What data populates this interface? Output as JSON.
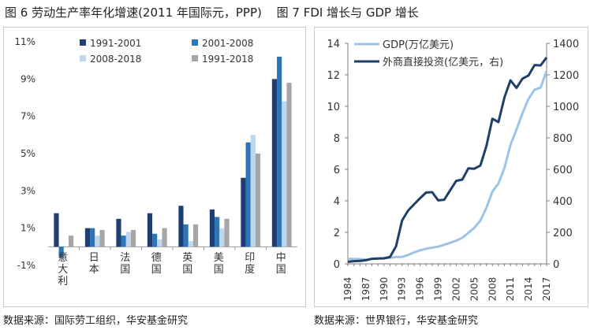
{
  "header": {
    "left_title": "图 6  劳动生产率年化增速(2011 年国际元，PPP)",
    "right_title": "图 7 FDI 增长与 GDP 增长"
  },
  "footer": {
    "left_source": "数据来源：国际劳工组织，华安基金研究",
    "right_source": "数据来源：世界银行，华安基金研究"
  },
  "chart_data": [
    {
      "type": "bar",
      "title": "劳动生产率年化增速(2011 年国际元，PPP)",
      "categories": [
        "意大利",
        "日本",
        "法国",
        "德国",
        "英国",
        "美国",
        "印度",
        "中国"
      ],
      "series": [
        {
          "name": "1991-2001",
          "color": "#1f3f73",
          "values": [
            1.8,
            1.0,
            1.5,
            1.8,
            2.2,
            2.0,
            3.7,
            9.0
          ]
        },
        {
          "name": "2001-2008",
          "color": "#2e75b6",
          "values": [
            -0.6,
            1.0,
            0.6,
            0.7,
            1.2,
            1.6,
            5.6,
            10.2
          ]
        },
        {
          "name": "2008-2018",
          "color": "#bdd7ee",
          "values": [
            0.0,
            0.6,
            0.8,
            0.4,
            0.3,
            1.0,
            6.0,
            7.8
          ]
        },
        {
          "name": "1991-2018",
          "color": "#a6a6a6",
          "values": [
            0.6,
            0.9,
            0.9,
            1.0,
            1.2,
            1.5,
            5.0,
            8.8
          ]
        }
      ],
      "ylim": [
        -1,
        11
      ],
      "yticks": [
        -1,
        1,
        3,
        5,
        7,
        9,
        11
      ],
      "ytick_labels": [
        "-1%",
        "1%",
        "3%",
        "5%",
        "7%",
        "9%",
        "11%"
      ],
      "legend_position": "top"
    },
    {
      "type": "line",
      "title": "FDI 增长与 GDP 增长",
      "x": [
        1984,
        1985,
        1986,
        1987,
        1988,
        1989,
        1990,
        1991,
        1992,
        1993,
        1994,
        1995,
        1996,
        1997,
        1998,
        1999,
        2000,
        2001,
        2002,
        2003,
        2004,
        2005,
        2006,
        2007,
        2008,
        2009,
        2010,
        2011,
        2012,
        2013,
        2014,
        2015,
        2016,
        2017
      ],
      "xtick_labels": [
        "1984",
        "1987",
        "1990",
        "1993",
        "1996",
        "1999",
        "2002",
        "2005",
        "2008",
        "2011",
        "2014",
        "2017"
      ],
      "y_left": {
        "label": "GDP(万亿美元)",
        "ylim": [
          0,
          14
        ],
        "ticks": [
          0,
          2,
          4,
          6,
          8,
          10,
          12,
          14
        ]
      },
      "y_right": {
        "label": "外商直接投资(亿美元，右)",
        "ylim": [
          0,
          1400
        ],
        "ticks": [
          0,
          200,
          400,
          600,
          800,
          1000,
          1200,
          1400
        ]
      },
      "series": [
        {
          "name": "GDP(万亿美元)",
          "axis": "left",
          "color": "#9dc3e6",
          "values": [
            0.31,
            0.31,
            0.3,
            0.27,
            0.31,
            0.35,
            0.36,
            0.38,
            0.43,
            0.44,
            0.56,
            0.73,
            0.86,
            0.96,
            1.03,
            1.09,
            1.21,
            1.34,
            1.47,
            1.66,
            1.96,
            2.29,
            2.75,
            3.55,
            4.59,
            5.1,
            6.09,
            7.55,
            8.53,
            9.57,
            10.48,
            11.06,
            11.19,
            12.24
          ]
        },
        {
          "name": "外商直接投资(亿美元，右)",
          "axis": "right",
          "color": "#1f3f66",
          "values": [
            13,
            17,
            19,
            23,
            32,
            34,
            35,
            44,
            111,
            275,
            338,
            378,
            417,
            453,
            455,
            403,
            407,
            468,
            527,
            535,
            606,
            604,
            624,
            747,
            921,
            900,
            1057,
            1165,
            1117,
            1176,
            1196,
            1262,
            1260,
            1310
          ]
        }
      ],
      "legend_position": "top-left"
    }
  ]
}
